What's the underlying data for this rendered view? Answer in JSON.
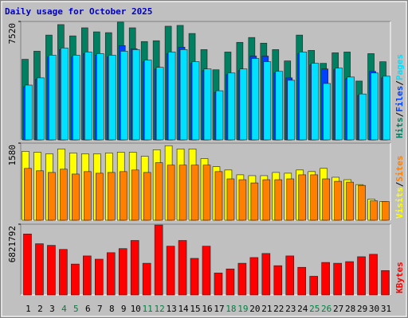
{
  "title": "Daily usage for October 2025",
  "legend_separator": "/",
  "categories": [
    "1",
    "2",
    "3",
    "4",
    "5",
    "6",
    "7",
    "8",
    "9",
    "10",
    "11",
    "12",
    "13",
    "14",
    "15",
    "16",
    "17",
    "18",
    "19",
    "20",
    "21",
    "22",
    "23",
    "24",
    "25",
    "26",
    "27",
    "28",
    "29",
    "30",
    "31"
  ],
  "category_colors": [
    "#000000",
    "#000000",
    "#000000",
    "#008040",
    "#008040",
    "#000000",
    "#000000",
    "#000000",
    "#000000",
    "#000000",
    "#008040",
    "#008040",
    "#000000",
    "#000000",
    "#000000",
    "#000000",
    "#000000",
    "#008040",
    "#008040",
    "#000000",
    "#000000",
    "#000000",
    "#000000",
    "#000000",
    "#008040",
    "#008040",
    "#000000",
    "#000000",
    "#000000",
    "#000000",
    "#000000"
  ],
  "chart_data": [
    {
      "type": "bar",
      "ylim": [
        0,
        7520
      ],
      "yticks": [
        7520
      ],
      "series": [
        {
          "name": "Hits",
          "color": "#008060",
          "values": [
            5120,
            5632,
            6656,
            7322,
            6605,
            7117,
            6861,
            6810,
            7475,
            7117,
            6246,
            6298,
            7219,
            7270,
            6758,
            5734,
            4454,
            5581,
            6195,
            6502,
            6144,
            5734,
            5018,
            6656,
            5683,
            4864,
            5530,
            5581,
            3738,
            5478,
            4966
          ]
        },
        {
          "name": "Files",
          "color": "#0040ff",
          "values": [
            3380,
            3840,
            5270,
            5730,
            5270,
            5480,
            5380,
            5270,
            5990,
            5786,
            4970,
            4500,
            5480,
            5888,
            4860,
            4400,
            3020,
            4150,
            4400,
            5325,
            5325,
            4250,
            3942,
            5480,
            4760,
            4506,
            4450,
            3890,
            2820,
            4352,
            3940
          ]
        },
        {
          "name": "Pages",
          "color": "#00e0ff",
          "values": [
            3482,
            3942,
            5376,
            5837,
            5376,
            5581,
            5478,
            5376,
            5632,
            5734,
            5069,
            4608,
            5581,
            5734,
            4966,
            4506,
            3123,
            4250,
            4506,
            5171,
            4966,
            4352,
            3789,
            5581,
            4864,
            3584,
            4557,
            3994,
            2918,
            4250,
            4045
          ]
        }
      ]
    },
    {
      "type": "bar",
      "ylim": [
        0,
        1580
      ],
      "yticks": [
        1580
      ],
      "series": [
        {
          "name": "Visits",
          "color": "#ffff00",
          "values": [
            1411,
            1394,
            1361,
            1461,
            1378,
            1361,
            1361,
            1378,
            1394,
            1394,
            1311,
            1444,
            1527,
            1461,
            1461,
            1262,
            1096,
            1029,
            930,
            913,
            913,
            979,
            963,
            1029,
            996,
            1062,
            880,
            830,
            730,
            432,
            382
          ]
        },
        {
          "name": "Sites",
          "color": "#ff8000",
          "values": [
            1062,
            1013,
            979,
            1046,
            946,
            996,
            963,
            979,
            996,
            1029,
            979,
            1179,
            1129,
            1129,
            1129,
            1129,
            996,
            847,
            830,
            764,
            830,
            830,
            847,
            930,
            930,
            847,
            797,
            780,
            714,
            398,
            382
          ]
        }
      ]
    },
    {
      "type": "bar",
      "ylim": [
        0,
        6821792
      ],
      "yticks": [
        6821792
      ],
      "series": [
        {
          "name": "KBytes",
          "color": "#ff0000",
          "values": [
            5880000,
            4939200,
            4782400,
            4390400,
            2979200,
            3763200,
            3449600,
            4076800,
            4468800,
            5252800,
            3057600,
            6742400,
            4704000,
            5252800,
            3528000,
            4704000,
            2116800,
            2508800,
            3057600,
            3606400,
            3998400,
            2822400,
            3763200,
            2665600,
            1803200,
            3136000,
            3057600,
            3214400,
            3684800,
            3920000,
            2352000
          ]
        }
      ]
    }
  ]
}
